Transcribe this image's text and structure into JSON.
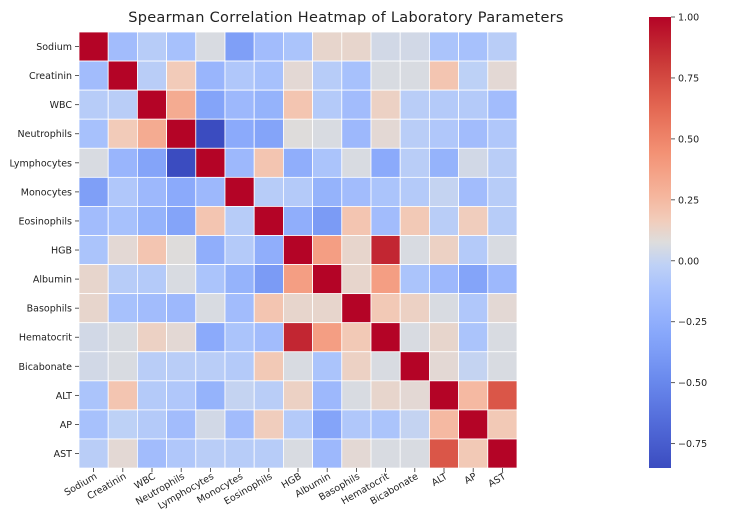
{
  "chart_data": {
    "type": "heatmap",
    "title": "Spearman Correlation Heatmap of Laboratory Parameters",
    "xlabel": "",
    "ylabel": "",
    "labels": [
      "Sodium",
      "Creatinin",
      "WBC",
      "Neutrophils",
      "Lymphocytes",
      "Monocytes",
      "Eosinophils",
      "HGB",
      "Albumin",
      "Basophils",
      "Hematocrit",
      "Bicabonate",
      "ALT",
      "AP",
      "AST"
    ],
    "matrix": [
      [
        1.0,
        -0.15,
        -0.05,
        -0.12,
        0.06,
        -0.35,
        -0.15,
        -0.1,
        0.12,
        0.12,
        0.04,
        0.04,
        -0.1,
        -0.12,
        -0.04
      ],
      [
        -0.15,
        1.0,
        -0.04,
        0.17,
        -0.2,
        -0.08,
        -0.12,
        0.1,
        -0.05,
        -0.12,
        0.06,
        0.06,
        0.2,
        -0.02,
        0.1
      ],
      [
        -0.05,
        -0.04,
        1.0,
        0.32,
        -0.32,
        -0.18,
        -0.22,
        0.2,
        -0.06,
        -0.15,
        0.14,
        -0.04,
        -0.06,
        -0.06,
        -0.15
      ],
      [
        -0.12,
        0.17,
        0.32,
        1.0,
        -0.85,
        -0.28,
        -0.32,
        0.08,
        0.06,
        -0.18,
        0.1,
        -0.04,
        -0.08,
        -0.15,
        -0.08
      ],
      [
        0.06,
        -0.2,
        -0.32,
        -0.85,
        1.0,
        -0.18,
        0.2,
        -0.25,
        -0.1,
        0.06,
        -0.28,
        -0.04,
        -0.22,
        0.04,
        -0.04
      ],
      [
        -0.35,
        -0.08,
        -0.18,
        -0.28,
        -0.18,
        1.0,
        -0.05,
        -0.06,
        -0.22,
        -0.15,
        -0.1,
        -0.06,
        0.0,
        -0.15,
        -0.05
      ],
      [
        -0.15,
        -0.12,
        -0.22,
        -0.32,
        0.2,
        -0.05,
        1.0,
        -0.25,
        -0.38,
        0.2,
        -0.15,
        0.18,
        -0.04,
        0.16,
        -0.05
      ],
      [
        -0.1,
        0.1,
        0.2,
        0.08,
        -0.25,
        -0.06,
        -0.25,
        1.0,
        0.38,
        0.12,
        0.88,
        0.06,
        0.14,
        -0.06,
        0.06
      ],
      [
        0.12,
        -0.05,
        -0.06,
        0.06,
        -0.1,
        -0.22,
        -0.38,
        0.38,
        1.0,
        0.12,
        0.38,
        -0.1,
        -0.18,
        -0.32,
        -0.18
      ],
      [
        0.12,
        -0.12,
        -0.15,
        -0.18,
        0.06,
        -0.15,
        0.2,
        0.12,
        0.12,
        1.0,
        0.18,
        0.14,
        0.06,
        -0.08,
        0.1
      ],
      [
        0.04,
        0.06,
        0.14,
        0.1,
        -0.28,
        -0.1,
        -0.15,
        0.88,
        0.38,
        0.18,
        1.0,
        0.06,
        0.12,
        -0.1,
        0.06
      ],
      [
        0.04,
        0.06,
        -0.04,
        -0.04,
        -0.04,
        -0.06,
        0.18,
        0.06,
        -0.1,
        0.14,
        0.06,
        1.0,
        0.1,
        0.0,
        0.06
      ],
      [
        -0.1,
        0.2,
        -0.06,
        -0.08,
        -0.22,
        0.0,
        -0.04,
        0.14,
        -0.18,
        0.06,
        0.12,
        0.1,
        1.0,
        0.25,
        0.7
      ],
      [
        -0.12,
        -0.02,
        -0.06,
        -0.15,
        0.04,
        -0.15,
        0.16,
        -0.06,
        -0.32,
        -0.08,
        -0.1,
        0.0,
        0.25,
        1.0,
        0.18
      ],
      [
        -0.04,
        0.1,
        -0.15,
        -0.08,
        -0.04,
        -0.05,
        -0.05,
        0.06,
        -0.18,
        0.1,
        0.06,
        0.06,
        0.7,
        0.18,
        1.0
      ]
    ],
    "vmin": -0.85,
    "vmax": 1.0,
    "colormap": "coolwarm",
    "colorbar_ticks": [
      1.0,
      0.75,
      0.5,
      0.25,
      0.0,
      -0.25,
      -0.5,
      -0.75
    ],
    "colorbar_tick_labels": [
      "1.00",
      "0.75",
      "0.50",
      "0.25",
      "0.00",
      "−0.25",
      "−0.50",
      "−0.75"
    ],
    "colors": {
      "low": "#3b4cc0",
      "mid": "#dddddd",
      "high": "#b40426",
      "gridline": "#ffffff"
    }
  }
}
